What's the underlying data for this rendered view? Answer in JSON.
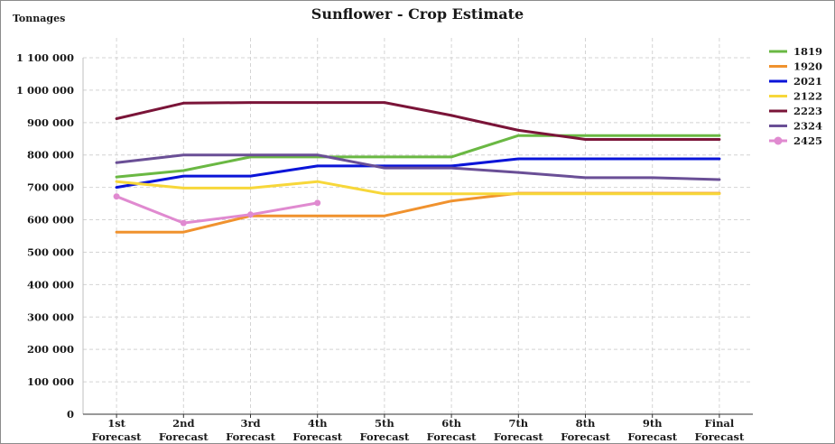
{
  "chart_data": {
    "type": "line",
    "title": "Sunflower - Crop Estimate",
    "ylabel": "Tonnages",
    "xlabel": "",
    "categories": [
      [
        "1st",
        "Forecast"
      ],
      [
        "2nd",
        "Forecast"
      ],
      [
        "3rd",
        "Forecast"
      ],
      [
        "4th",
        "Forecast"
      ],
      [
        "5th",
        "Forecast"
      ],
      [
        "6th",
        "Forecast"
      ],
      [
        "7th",
        "Forecast"
      ],
      [
        "8th",
        "Forecast"
      ],
      [
        "9th",
        "Forecast"
      ],
      [
        "Final",
        "Forecast"
      ]
    ],
    "ylim": [
      0,
      1100000
    ],
    "yticks": [
      {
        "value": 0,
        "label": "0"
      },
      {
        "value": 100000,
        "label": "100 000"
      },
      {
        "value": 200000,
        "label": "200 000"
      },
      {
        "value": 300000,
        "label": "300 000"
      },
      {
        "value": 400000,
        "label": "400 000"
      },
      {
        "value": 500000,
        "label": "500 000"
      },
      {
        "value": 600000,
        "label": "600 000"
      },
      {
        "value": 700000,
        "label": "700 000"
      },
      {
        "value": 800000,
        "label": "800 000"
      },
      {
        "value": 900000,
        "label": "900 000"
      },
      {
        "value": 1000000,
        "label": "1 000 000"
      },
      {
        "value": 1100000,
        "label": "1 100 000"
      }
    ],
    "grid": true,
    "legend_position": "right",
    "series": [
      {
        "name": "1819",
        "color": "#6ab843",
        "marker": false,
        "values": [
          732000,
          752000,
          794000,
          794000,
          794000,
          794000,
          860000,
          860000,
          860000,
          860000
        ]
      },
      {
        "name": "1920",
        "color": "#f0922e",
        "marker": false,
        "values": [
          562000,
          562000,
          612000,
          612000,
          612000,
          658000,
          682000,
          682000,
          682000,
          682000
        ]
      },
      {
        "name": "2021",
        "color": "#0a14d8",
        "marker": false,
        "values": [
          700000,
          735000,
          735000,
          766000,
          766000,
          766000,
          788000,
          788000,
          788000,
          788000
        ]
      },
      {
        "name": "2122",
        "color": "#f7d73a",
        "marker": false,
        "values": [
          718000,
          698000,
          698000,
          718000,
          680000,
          680000,
          680000,
          680000,
          680000,
          680000
        ]
      },
      {
        "name": "2223",
        "color": "#7a1438",
        "marker": false,
        "values": [
          912000,
          960000,
          962000,
          962000,
          962000,
          922000,
          876000,
          848000,
          848000,
          848000
        ]
      },
      {
        "name": "2324",
        "color": "#6a4f96",
        "marker": false,
        "values": [
          776000,
          800000,
          800000,
          800000,
          760000,
          760000,
          746000,
          730000,
          730000,
          724000
        ]
      },
      {
        "name": "2425",
        "color": "#e08ad0",
        "marker": true,
        "values": [
          672000,
          590000,
          616000,
          652000,
          null,
          null,
          null,
          null,
          null,
          null
        ]
      }
    ]
  }
}
